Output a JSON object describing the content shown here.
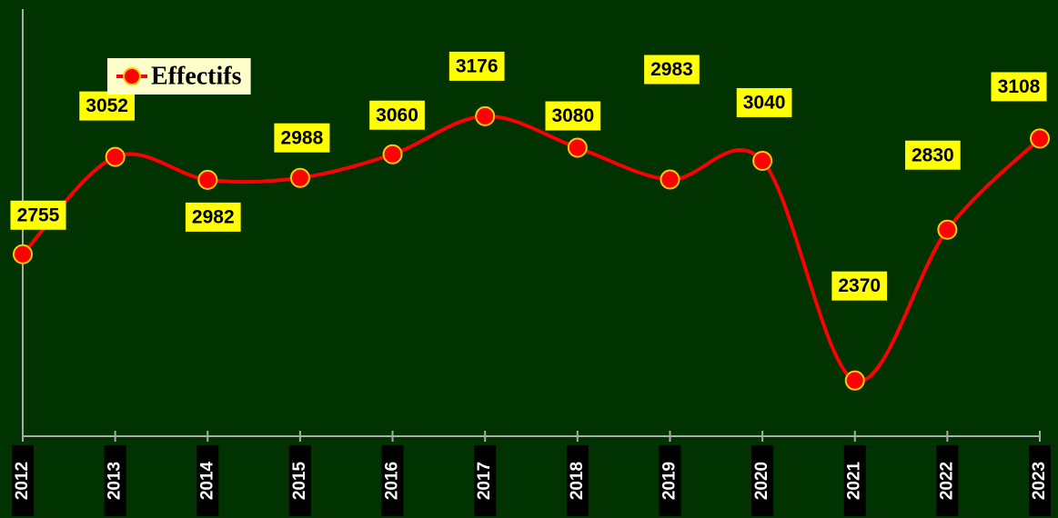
{
  "chart_data": {
    "type": "line",
    "categories": [
      "2012",
      "2013",
      "2014",
      "2015",
      "2016",
      "2017",
      "2018",
      "2019",
      "2020",
      "2021",
      "2022",
      "2023"
    ],
    "series": [
      {
        "name": "Effectifs",
        "color": "#ff0000",
        "values": [
          2755,
          3052,
          2982,
          2988,
          3060,
          3176,
          3080,
          2983,
          3040,
          2370,
          2830,
          3108
        ]
      }
    ],
    "ylim": [
      2200,
      3500
    ],
    "smooth": true,
    "legend": "top-left"
  }
}
